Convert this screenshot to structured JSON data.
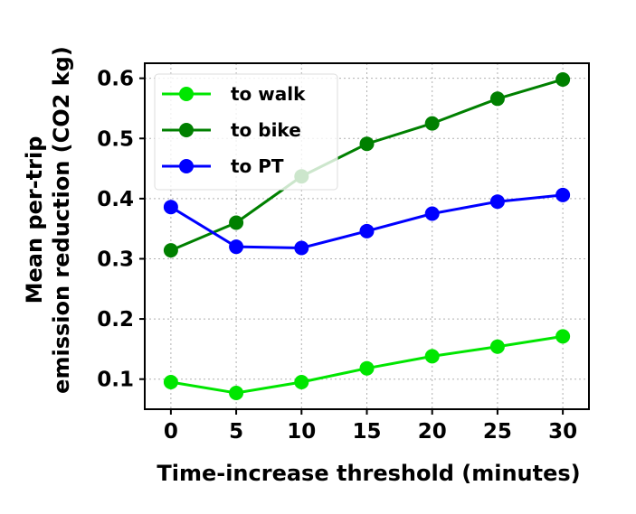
{
  "chart_data": {
    "type": "line",
    "xlabel": "Time-increase threshold (minutes)",
    "ylabel_lines": [
      "Mean per-trip",
      "emission reduction (CO2 kg)"
    ],
    "x": [
      0,
      5,
      10,
      15,
      20,
      25,
      30
    ],
    "xlim": [
      -2,
      32
    ],
    "ylim": [
      0.05,
      0.625
    ],
    "xticks": [
      "0",
      "5",
      "10",
      "15",
      "20",
      "25",
      "30"
    ],
    "yticks": [
      "0.1",
      "0.2",
      "0.3",
      "0.4",
      "0.5",
      "0.6"
    ],
    "grid": true,
    "legend_position": "top-left",
    "series": [
      {
        "name": "to walk",
        "color": "#00e600",
        "values": [
          0.095,
          0.077,
          0.095,
          0.118,
          0.138,
          0.154,
          0.171
        ]
      },
      {
        "name": "to bike",
        "color": "#008000",
        "values": [
          0.314,
          0.36,
          0.437,
          0.491,
          0.525,
          0.566,
          0.598
        ]
      },
      {
        "name": "to PT",
        "color": "#0000ff",
        "values": [
          0.386,
          0.32,
          0.318,
          0.346,
          0.375,
          0.395,
          0.406
        ]
      }
    ]
  }
}
